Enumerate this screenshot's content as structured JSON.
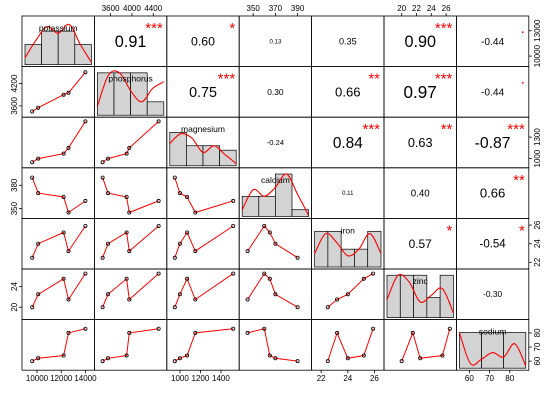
{
  "chart_data": {
    "type": "scatter",
    "variables": [
      "potassium",
      "phosphorus",
      "magnesium",
      "calcium",
      "iron",
      "zinc",
      "sodium"
    ],
    "ranges": {
      "potassium": [
        9000,
        14500
      ],
      "phosphorus": [
        3350,
        4600
      ],
      "magnesium": [
        900,
        1550
      ],
      "calcium": [
        340,
        400
      ],
      "iron": [
        21.5,
        26.5
      ],
      "zinc": [
        18,
        27
      ],
      "sodium": [
        55,
        88
      ]
    },
    "bottom_ticks": [
      {
        "var": "potassium",
        "values": [
          10000,
          12000,
          14000
        ],
        "labels": [
          "10000",
          "12000",
          "14000"
        ]
      },
      {
        "var": "magnesium",
        "values": [
          1000,
          1200,
          1400
        ],
        "labels": [
          "1000",
          "1200",
          "1400"
        ]
      },
      {
        "var": "iron",
        "values": [
          22,
          24,
          26
        ],
        "labels": [
          "22",
          "24",
          "26"
        ]
      },
      {
        "var": "sodium",
        "values": [
          60,
          70,
          80
        ],
        "labels": [
          "60",
          "70",
          "80"
        ]
      }
    ],
    "top_ticks": [
      {
        "var": "phosphorus",
        "values": [
          3600,
          4000,
          4400
        ],
        "labels": [
          "3600",
          "4000",
          "4400"
        ]
      },
      {
        "var": "calcium",
        "values": [
          350,
          370,
          390
        ],
        "labels": [
          "350",
          "370",
          "390"
        ]
      },
      {
        "var": "zinc",
        "values": [
          20,
          22,
          24,
          26
        ],
        "labels": [
          "20",
          "22",
          "24",
          "26"
        ]
      }
    ],
    "left_ticks": [
      {
        "var": "phosphorus",
        "values": [
          3600,
          4200
        ],
        "labels": [
          "3600",
          "4200"
        ]
      },
      {
        "var": "calcium",
        "values": [
          350,
          380
        ],
        "labels": [
          "350",
          "380"
        ]
      },
      {
        "var": "zinc",
        "values": [
          20,
          24
        ],
        "labels": [
          "20",
          "24"
        ]
      }
    ],
    "right_ticks": [
      {
        "var": "potassium",
        "values": [
          10000,
          13000
        ],
        "labels": [
          "10000",
          "13000"
        ]
      },
      {
        "var": "magnesium",
        "values": [
          1000,
          1300
        ],
        "labels": [
          "1000",
          "1300"
        ]
      },
      {
        "var": "iron",
        "values": [
          22,
          24,
          26
        ],
        "labels": [
          "22",
          "24",
          "26"
        ]
      },
      {
        "var": "sodium",
        "values": [
          60,
          70,
          80
        ],
        "labels": [
          "60",
          "70",
          "80"
        ]
      }
    ],
    "observations": {
      "potassium": [
        9600,
        10100,
        12200,
        12600,
        14000
      ],
      "phosphorus": [
        3450,
        3550,
        3900,
        3950,
        4500
      ],
      "magnesium": [
        950,
        1000,
        1070,
        1150,
        1520
      ],
      "calcium": [
        390,
        370,
        365,
        345,
        360
      ],
      "iron": [
        22.5,
        24.0,
        25.2,
        23.2,
        25.9
      ],
      "zinc": [
        20.0,
        22.5,
        25.5,
        21.5,
        26.5
      ],
      "sodium": [
        60,
        62,
        64,
        80,
        83
      ]
    },
    "correlations": [
      {
        "pair": [
          "potassium",
          "phosphorus"
        ],
        "r": "0.91",
        "stars": "***"
      },
      {
        "pair": [
          "potassium",
          "magnesium"
        ],
        "r": "0.60",
        "stars": "*"
      },
      {
        "pair": [
          "potassium",
          "calcium"
        ],
        "r": "0.13",
        "stars": ""
      },
      {
        "pair": [
          "potassium",
          "iron"
        ],
        "r": "0.35",
        "stars": ""
      },
      {
        "pair": [
          "potassium",
          "zinc"
        ],
        "r": "0.90",
        "stars": "***"
      },
      {
        "pair": [
          "potassium",
          "sodium"
        ],
        "r": "-0.44",
        "stars": "."
      },
      {
        "pair": [
          "phosphorus",
          "magnesium"
        ],
        "r": "0.75",
        "stars": "***"
      },
      {
        "pair": [
          "phosphorus",
          "calcium"
        ],
        "r": "0.30",
        "stars": ""
      },
      {
        "pair": [
          "phosphorus",
          "iron"
        ],
        "r": "0.66",
        "stars": "**"
      },
      {
        "pair": [
          "phosphorus",
          "zinc"
        ],
        "r": "0.97",
        "stars": "***"
      },
      {
        "pair": [
          "phosphorus",
          "sodium"
        ],
        "r": "-0.44",
        "stars": "."
      },
      {
        "pair": [
          "magnesium",
          "calcium"
        ],
        "r": "-0.24",
        "stars": ""
      },
      {
        "pair": [
          "magnesium",
          "iron"
        ],
        "r": "0.84",
        "stars": "***"
      },
      {
        "pair": [
          "magnesium",
          "zinc"
        ],
        "r": "0.63",
        "stars": "**"
      },
      {
        "pair": [
          "magnesium",
          "sodium"
        ],
        "r": "-0.87",
        "stars": "***"
      },
      {
        "pair": [
          "calcium",
          "iron"
        ],
        "r": "0.11",
        "stars": ""
      },
      {
        "pair": [
          "calcium",
          "zinc"
        ],
        "r": "0.40",
        "stars": ""
      },
      {
        "pair": [
          "calcium",
          "sodium"
        ],
        "r": "0.66",
        "stars": "**"
      },
      {
        "pair": [
          "iron",
          "zinc"
        ],
        "r": "0.57",
        "stars": "*"
      },
      {
        "pair": [
          "iron",
          "sodium"
        ],
        "r": "-0.54",
        "stars": "*"
      },
      {
        "pair": [
          "zinc",
          "sodium"
        ],
        "r": "-0.30",
        "stars": ""
      }
    ],
    "histograms": {
      "potassium": {
        "heights": [
          0.45,
          0.75,
          0.75,
          0.45
        ],
        "density": [
          0.15,
          0.55,
          0.85,
          0.7,
          0.9,
          0.45,
          0.05
        ]
      },
      "phosphorus": {
        "heights": [
          0.95,
          0.95,
          0.95,
          0.3
        ],
        "density": [
          0.2,
          0.9,
          0.95,
          0.55,
          0.3,
          0.6,
          0.75
        ]
      },
      "magnesium": {
        "heights": [
          0.75,
          0.45,
          0.45,
          0.35
        ],
        "density": [
          0.5,
          0.72,
          0.62,
          0.3,
          0.45,
          0.25,
          0.05
        ]
      },
      "calcium": {
        "heights": [
          0.45,
          0.45,
          0.95,
          0.15
        ],
        "density": [
          0.15,
          0.6,
          0.45,
          0.65,
          0.95,
          0.5,
          0.02
        ]
      },
      "iron": {
        "heights": [
          0.8,
          0.8,
          0.4,
          0.4,
          0.8
        ],
        "density": [
          0.3,
          0.75,
          0.55,
          0.25,
          0.4,
          0.75,
          0.3
        ]
      },
      "zinc": {
        "heights": [
          0.95,
          0.95,
          0.95,
          0.45,
          0.95
        ],
        "density": [
          0.4,
          0.95,
          0.8,
          0.35,
          0.5,
          0.65,
          0.1
        ]
      },
      "sodium": {
        "heights": [
          0.8,
          0.8,
          0.8
        ],
        "density": [
          0.8,
          0.1,
          0.2,
          0.35,
          0.25,
          0.55,
          0.05
        ]
      }
    },
    "colors": {
      "background": "#ffffff",
      "frame": "#000000",
      "bar_fill": "#d3d3d3",
      "smooth_line": "#ff0000",
      "stars": "#ff0000",
      "text": "#000000"
    },
    "grid": false
  }
}
